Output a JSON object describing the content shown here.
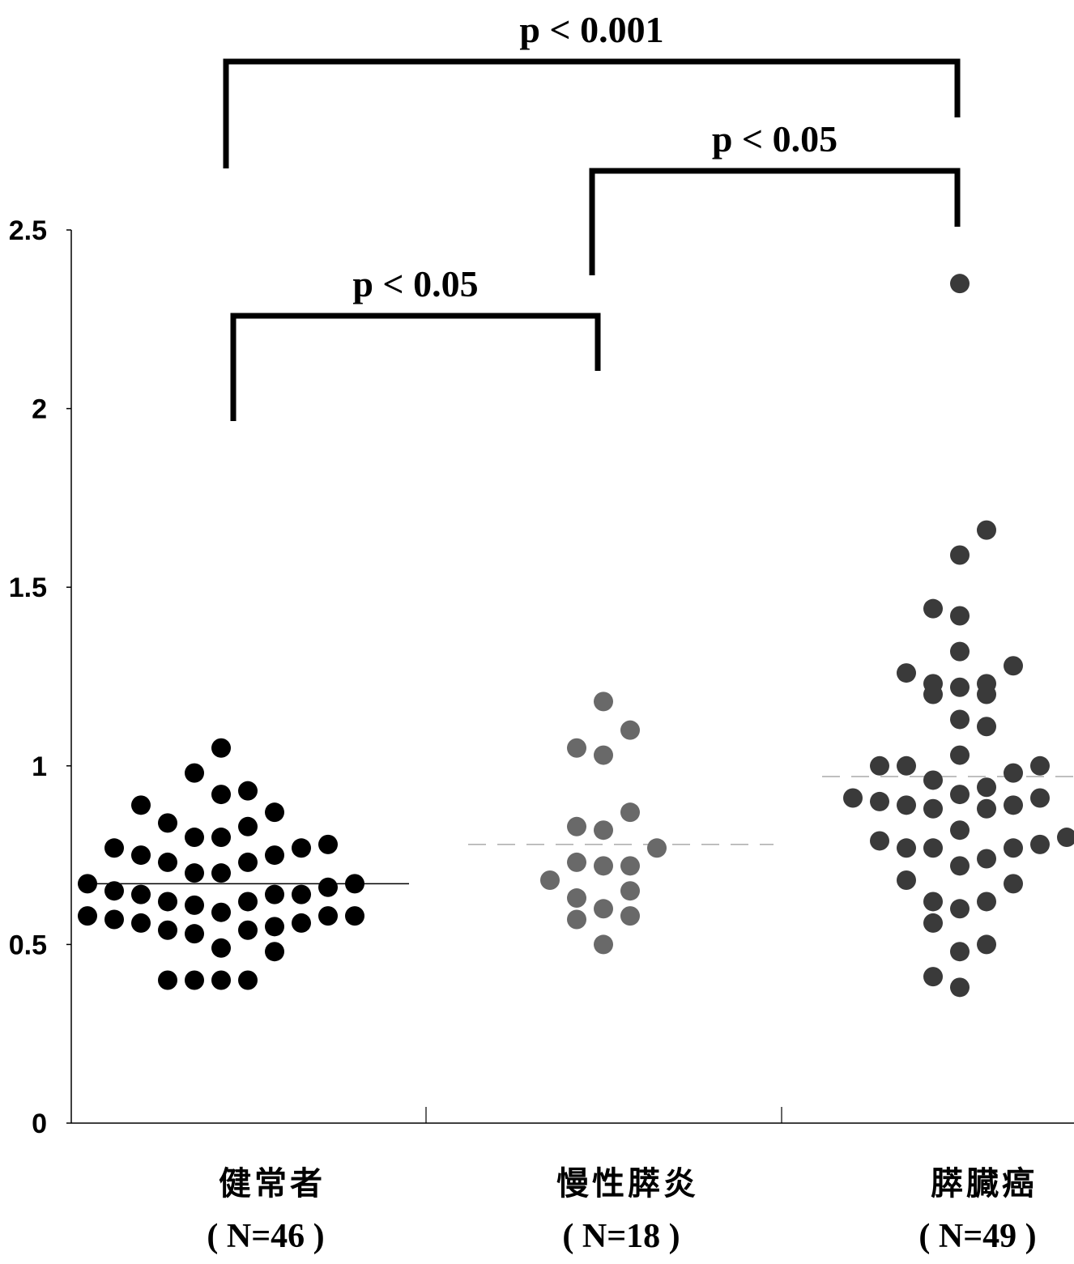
{
  "chart_data": {
    "type": "scatter",
    "title": "",
    "xlabel": "",
    "ylabel": "",
    "ylim": [
      0,
      2.5
    ],
    "yticks": [
      "0",
      "0.5",
      "1",
      "1.5",
      "2",
      "2.5"
    ],
    "grid": false,
    "categories": [
      {
        "name": "健常者",
        "n_label": "( N=46 )"
      },
      {
        "name": "慢性膵炎",
        "n_label": "( N=18 )"
      },
      {
        "name": "膵臓癌",
        "n_label": "( N=49 )"
      }
    ],
    "series": [
      {
        "category": "健常者",
        "color": "#000000",
        "median": 0.67,
        "median_style": "solid",
        "points": [
          [
            -1,
            1.05
          ],
          [
            -2,
            0.98
          ],
          [
            -1,
            0.92
          ],
          [
            0,
            0.93
          ],
          [
            -4,
            0.89
          ],
          [
            1,
            0.87
          ],
          [
            -3,
            0.84
          ],
          [
            0,
            0.83
          ],
          [
            -2,
            0.8
          ],
          [
            -1,
            0.8
          ],
          [
            -5,
            0.77
          ],
          [
            2,
            0.77
          ],
          [
            3,
            0.78
          ],
          [
            -4,
            0.75
          ],
          [
            1,
            0.75
          ],
          [
            -3,
            0.73
          ],
          [
            0,
            0.73
          ],
          [
            -2,
            0.7
          ],
          [
            -1,
            0.7
          ],
          [
            -6,
            0.67
          ],
          [
            4,
            0.67
          ],
          [
            -5,
            0.65
          ],
          [
            -4,
            0.64
          ],
          [
            1,
            0.64
          ],
          [
            2,
            0.64
          ],
          [
            3,
            0.66
          ],
          [
            -3,
            0.62
          ],
          [
            0,
            0.62
          ],
          [
            -2,
            0.61
          ],
          [
            -1,
            0.59
          ],
          [
            -6,
            0.58
          ],
          [
            4,
            0.58
          ],
          [
            3,
            0.58
          ],
          [
            -5,
            0.57
          ],
          [
            -4,
            0.56
          ],
          [
            2,
            0.56
          ],
          [
            -3,
            0.54
          ],
          [
            0,
            0.54
          ],
          [
            1,
            0.55
          ],
          [
            -2,
            0.53
          ],
          [
            -1,
            0.49
          ],
          [
            1,
            0.48
          ],
          [
            -3,
            0.4
          ],
          [
            -2,
            0.4
          ],
          [
            -1,
            0.4
          ],
          [
            0,
            0.4
          ]
        ]
      },
      {
        "category": "慢性膵炎",
        "color": "#696969",
        "median": 0.78,
        "median_style": "dashed",
        "points": [
          [
            0,
            1.18
          ],
          [
            1,
            1.1
          ],
          [
            -1,
            1.05
          ],
          [
            0,
            1.03
          ],
          [
            1,
            0.87
          ],
          [
            -1,
            0.83
          ],
          [
            0,
            0.82
          ],
          [
            2,
            0.77
          ],
          [
            -1,
            0.73
          ],
          [
            0,
            0.72
          ],
          [
            1,
            0.72
          ],
          [
            -2,
            0.68
          ],
          [
            1,
            0.65
          ],
          [
            -1,
            0.63
          ],
          [
            0,
            0.6
          ],
          [
            -1,
            0.57
          ],
          [
            1,
            0.58
          ],
          [
            0,
            0.5
          ]
        ]
      },
      {
        "category": "膵臓癌",
        "color": "#3a3a3a",
        "median": 0.97,
        "median_style": "dashed",
        "points": [
          [
            0,
            2.35
          ],
          [
            1,
            1.66
          ],
          [
            0,
            1.59
          ],
          [
            -1,
            1.44
          ],
          [
            0,
            1.42
          ],
          [
            0,
            1.32
          ],
          [
            2,
            1.28
          ],
          [
            -2,
            1.26
          ],
          [
            -1,
            1.23
          ],
          [
            0,
            1.22
          ],
          [
            1,
            1.23
          ],
          [
            -1,
            1.2
          ],
          [
            1,
            1.2
          ],
          [
            0,
            1.13
          ],
          [
            1,
            1.11
          ],
          [
            0,
            1.03
          ],
          [
            -2,
            1.0
          ],
          [
            -3,
            1.0
          ],
          [
            3,
            1.0
          ],
          [
            2,
            0.98
          ],
          [
            -1,
            0.96
          ],
          [
            1,
            0.94
          ],
          [
            0,
            0.92
          ],
          [
            -4,
            0.91
          ],
          [
            3,
            0.91
          ],
          [
            -3,
            0.9
          ],
          [
            -2,
            0.89
          ],
          [
            2,
            0.89
          ],
          [
            -1,
            0.88
          ],
          [
            1,
            0.88
          ],
          [
            0,
            0.82
          ],
          [
            4,
            0.8
          ],
          [
            -3,
            0.79
          ],
          [
            3,
            0.78
          ],
          [
            -2,
            0.77
          ],
          [
            2,
            0.77
          ],
          [
            -1,
            0.77
          ],
          [
            1,
            0.74
          ],
          [
            0,
            0.72
          ],
          [
            -2,
            0.68
          ],
          [
            2,
            0.67
          ],
          [
            -1,
            0.62
          ],
          [
            1,
            0.62
          ],
          [
            0,
            0.6
          ],
          [
            -1,
            0.56
          ],
          [
            1,
            0.5
          ],
          [
            0,
            0.48
          ],
          [
            -1,
            0.41
          ],
          [
            0,
            0.38
          ]
        ]
      }
    ],
    "comparisons": [
      {
        "from": 0,
        "to": 1,
        "label": "p < 0.05",
        "level": 1
      },
      {
        "from": 1,
        "to": 2,
        "label": "p < 0.05",
        "level": 2
      },
      {
        "from": 0,
        "to": 2,
        "label": "p < 0.001",
        "level": 3
      }
    ]
  }
}
